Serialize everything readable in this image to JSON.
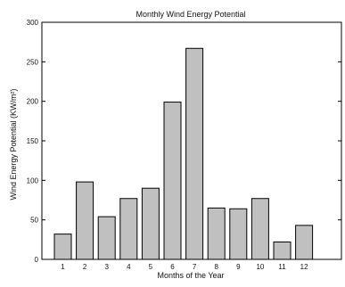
{
  "chart_data": {
    "type": "bar",
    "title": "Monthly Wind Energy Potential",
    "xlabel": "Months of the Year",
    "ylabel": "Wind Energy Potential (KW/m²)",
    "categories": [
      "1",
      "2",
      "3",
      "4",
      "5",
      "6",
      "7",
      "8",
      "9",
      "10",
      "11",
      "12"
    ],
    "values": [
      32,
      98,
      54,
      77,
      90,
      199,
      267,
      65,
      64,
      77,
      22,
      43
    ],
    "ylim": [
      0,
      300
    ],
    "yticks": [
      0,
      50,
      100,
      150,
      200,
      250,
      300
    ],
    "grid": false,
    "bar_color": "#c0c0c0",
    "bar_edge_color": "#000000"
  }
}
